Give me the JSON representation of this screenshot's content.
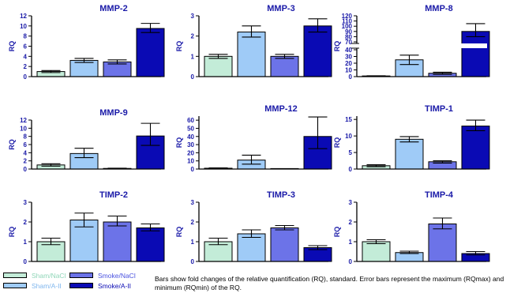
{
  "colors": {
    "sham_nacl": "#c3ecd8",
    "sham_aii": "#9fcbf7",
    "smoke_nacl": "#6c73e8",
    "smoke_aii": "#0a0ab4",
    "title": "#1a1aa8",
    "axis": "#000000"
  },
  "legend": [
    {
      "label": "Sham/NaCl",
      "color_key": "sham_nacl",
      "text_color": "#8fd6b8"
    },
    {
      "label": "Sham/A-II",
      "color_key": "sham_aii",
      "text_color": "#7fb6ee"
    },
    {
      "label": "Smoke/NaCl",
      "color_key": "smoke_nacl",
      "text_color": "#4a52e0"
    },
    {
      "label": "Smoke/A-II",
      "color_key": "smoke_aii",
      "text_color": "#0a0ab4"
    }
  ],
  "caption": "Bars show fold changes of the relative quantification (RQ), standard. Error bars represent the maximum (RQmax) and minimum (RQmin) of the RQ.",
  "chart_data": [
    {
      "type": "bar",
      "title": "MMP-2",
      "ylabel": "RQ",
      "ylim": [
        0,
        12
      ],
      "yticks": [
        0,
        2,
        4,
        6,
        8,
        10,
        12
      ],
      "values": [
        1.0,
        3.2,
        2.9,
        9.5
      ],
      "errors": [
        [
          0.8,
          1.2
        ],
        [
          2.8,
          3.6
        ],
        [
          2.5,
          3.3
        ],
        [
          8.7,
          10.5
        ]
      ]
    },
    {
      "type": "bar",
      "title": "MMP-3",
      "ylabel": "RQ",
      "ylim": [
        0,
        3
      ],
      "yticks": [
        0,
        1,
        2,
        3
      ],
      "values": [
        1.0,
        2.2,
        1.0,
        2.5
      ],
      "errors": [
        [
          0.9,
          1.1
        ],
        [
          1.95,
          2.5
        ],
        [
          0.9,
          1.1
        ],
        [
          2.2,
          2.85
        ]
      ]
    },
    {
      "type": "bar",
      "title": "MMP-8",
      "ylabel": "RQ",
      "broken_axis": true,
      "yticks": [
        0,
        10,
        20,
        30,
        40,
        70,
        80,
        90,
        100,
        110,
        120
      ],
      "values": [
        1.0,
        25.0,
        5.0,
        90.0
      ],
      "errors": [
        [
          0.7,
          1.3
        ],
        [
          18.0,
          32.0
        ],
        [
          3.5,
          6.5
        ],
        [
          80.0,
          105.0
        ]
      ]
    },
    {
      "type": "bar",
      "title": "MMP-9",
      "ylabel": "RQ",
      "ylim": [
        0,
        12
      ],
      "yticks": [
        0,
        2,
        4,
        6,
        8,
        10,
        12
      ],
      "values": [
        1.0,
        3.8,
        0.15,
        8.1
      ],
      "errors": [
        [
          0.7,
          1.3
        ],
        [
          2.8,
          5.1
        ],
        [
          0.1,
          0.2
        ],
        [
          5.8,
          11.2
        ]
      ]
    },
    {
      "type": "bar",
      "title": "MMP-12",
      "ylabel": "RQ",
      "ylim": [
        0,
        65
      ],
      "yticks": [
        0,
        10,
        20,
        30,
        40,
        50,
        60
      ],
      "values": [
        1.0,
        11.0,
        0.1,
        40.0
      ],
      "errors": [
        [
          0.6,
          1.4
        ],
        [
          6.0,
          17.0
        ],
        [
          0.05,
          0.15
        ],
        [
          25.0,
          64.0
        ]
      ]
    },
    {
      "type": "bar",
      "title": "TIMP-1",
      "ylabel": "RQ",
      "ylim": [
        0,
        16
      ],
      "yticks": [
        0,
        5,
        10,
        15
      ],
      "values": [
        1.0,
        9.0,
        2.2,
        13.0
      ],
      "errors": [
        [
          0.7,
          1.3
        ],
        [
          8.2,
          9.8
        ],
        [
          1.8,
          2.5
        ],
        [
          11.6,
          14.8
        ]
      ]
    },
    {
      "type": "bar",
      "title": "TIMP-2",
      "ylabel": "RQ",
      "ylim": [
        0,
        3
      ],
      "yticks": [
        0,
        1,
        2,
        3
      ],
      "values": [
        1.0,
        2.1,
        2.0,
        1.7
      ],
      "errors": [
        [
          0.85,
          1.18
        ],
        [
          1.75,
          2.45
        ],
        [
          1.8,
          2.3
        ],
        [
          1.55,
          1.9
        ]
      ]
    },
    {
      "type": "bar",
      "title": "TIMP-3",
      "ylabel": "RQ",
      "ylim": [
        0,
        3
      ],
      "yticks": [
        0,
        1,
        2,
        3
      ],
      "values": [
        1.0,
        1.4,
        1.7,
        0.7
      ],
      "errors": [
        [
          0.85,
          1.18
        ],
        [
          1.22,
          1.6
        ],
        [
          1.6,
          1.82
        ],
        [
          0.6,
          0.8
        ]
      ]
    },
    {
      "type": "bar",
      "title": "TIMP-4",
      "ylabel": "RQ",
      "ylim": [
        0,
        3
      ],
      "yticks": [
        0,
        1,
        2,
        3
      ],
      "values": [
        1.0,
        0.45,
        1.9,
        0.4
      ],
      "errors": [
        [
          0.9,
          1.1
        ],
        [
          0.4,
          0.52
        ],
        [
          1.65,
          2.2
        ],
        [
          0.33,
          0.5
        ]
      ]
    }
  ]
}
